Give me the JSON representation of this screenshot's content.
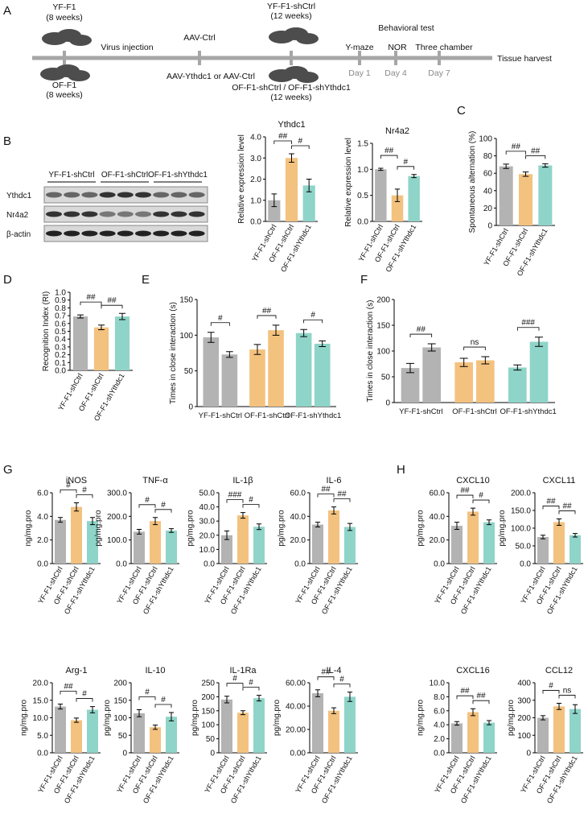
{
  "timeline": {
    "panel": "A",
    "start_top": [
      "YF-F1",
      "(8 weeks)"
    ],
    "start_bottom": [
      "OF-F1",
      "(8 weeks)"
    ],
    "injection": "Virus injection",
    "vector_top": "AAV-Ctrl",
    "vector_bottom": "AAV-Ythdc1 or AAV-Ctrl",
    "mid_top": [
      "YF-F1-shCtrl",
      "(12 weeks)"
    ],
    "mid_bottom": [
      "OF-F1-shCtrl / OF-F1-shYthdc1",
      "(12 weeks)"
    ],
    "behavior": "Behavioral test",
    "tests": [
      "Y-maze",
      "NOR",
      "Three chamber"
    ],
    "days": [
      "Day 1",
      "Day 4",
      "Day 7"
    ],
    "end": "Tissue harvest"
  },
  "blot": {
    "panel": "B",
    "lanes": [
      "YF-F1-shCtrl",
      "OF-F1-shCtrl",
      "OF-F1-shYthdc1"
    ],
    "rows": [
      "Ythdc1",
      "Nr4a2",
      "β-actin"
    ]
  },
  "chart_data": [
    {
      "type": "bar",
      "title": "Ythdc1",
      "ylabel": "Relative expression level",
      "categories": [
        "YF-F1-shCtrl",
        "OF-F1-shCtrl",
        "OF-F1-shYthdc1"
      ],
      "values": [
        1.0,
        3.0,
        1.7
      ],
      "errors": [
        0.3,
        0.2,
        0.3
      ],
      "colors": [
        "#b3b3b3",
        "#f3c27f",
        "#8fd4c8"
      ],
      "ylim": [
        0,
        4
      ],
      "yticks": [
        {
          "value": 0,
          "label": "0.0"
        },
        {
          "value": 1,
          "label": "1.0"
        },
        {
          "value": 2,
          "label": "2.0"
        },
        {
          "value": 3,
          "label": "3.0"
        },
        {
          "value": 4,
          "label": "4.0"
        }
      ],
      "annotations": [
        "##",
        "#"
      ]
    },
    {
      "type": "bar",
      "title": "Nr4a2",
      "ylabel": "Relative expression level",
      "categories": [
        "YF-F1-shCtrl",
        "OF-F1-shCtrl",
        "OF-F1-shYthdc1"
      ],
      "values": [
        1.0,
        0.5,
        0.87
      ],
      "errors": [
        0.02,
        0.12,
        0.03
      ],
      "colors": [
        "#b3b3b3",
        "#f3c27f",
        "#8fd4c8"
      ],
      "ylim": [
        0,
        1.5
      ],
      "yticks": [
        {
          "value": 0,
          "label": "0.0"
        },
        0.5,
        {
          "value": 1,
          "label": "1.0"
        },
        1.5
      ],
      "annotations": [
        "##",
        "#"
      ]
    },
    {
      "type": "bar",
      "panel": "C",
      "ylabel": "Spontaneous alternation (%)",
      "categories": [
        "YF-F1-shCtrl",
        "OF-F1-shCtrl",
        "OF-F1-shYthdc1"
      ],
      "values": [
        68,
        59,
        69
      ],
      "errors": [
        2.5,
        2.5,
        2
      ],
      "colors": [
        "#b3b3b3",
        "#f3c27f",
        "#8fd4c8"
      ],
      "ylim": [
        0,
        100
      ],
      "yticks": [
        0,
        20,
        40,
        60,
        80,
        100
      ],
      "annotations": [
        "##",
        "##"
      ]
    },
    {
      "type": "bar",
      "panel": "D",
      "ylabel": "Recognition Index (RI)",
      "categories": [
        "YF-F1-shCtrl",
        "OF-F1-shCtrl",
        "OF-F1-shYthdc1"
      ],
      "values": [
        0.69,
        0.55,
        0.69
      ],
      "errors": [
        0.02,
        0.03,
        0.04
      ],
      "colors": [
        "#b3b3b3",
        "#f3c27f",
        "#8fd4c8"
      ],
      "ylim": [
        0,
        1
      ],
      "yticks": [
        {
          "value": 0,
          "label": "0.0"
        },
        0.1,
        0.2,
        0.3,
        0.4,
        0.5,
        0.6,
        0.7,
        0.8,
        0.9,
        {
          "value": 1,
          "label": "1.0"
        }
      ],
      "annotations": [
        "##",
        "##"
      ]
    },
    {
      "type": "grouped_bar",
      "panel": "E",
      "ylabel": "Times in close interaction (s)",
      "categories": [
        "YF-F1-shCtrl",
        "OF-F1-shCtrl",
        "OF-F1-shYthdc1"
      ],
      "values": [
        [
          97,
          73
        ],
        [
          80,
          107
        ],
        [
          103,
          88
        ]
      ],
      "errors": [
        [
          7,
          4
        ],
        [
          7,
          7
        ],
        [
          5,
          4
        ]
      ],
      "colors": [
        "#b3b3b3",
        "#f3c27f",
        "#8fd4c8"
      ],
      "ylim": [
        0,
        150
      ],
      "yticks": [
        0,
        50,
        100,
        150
      ],
      "annotations": [
        "#",
        "##",
        "#"
      ]
    },
    {
      "type": "grouped_bar",
      "panel": "F",
      "ylabel": "Times in close interaction (s)",
      "categories": [
        "YF-F1-shCtrl",
        "OF-F1-shCtrl",
        "OF-F1-shYthdc1"
      ],
      "values": [
        [
          67,
          107
        ],
        [
          78,
          82
        ],
        [
          68,
          118
        ]
      ],
      "errors": [
        [
          9,
          7
        ],
        [
          8,
          7
        ],
        [
          5,
          9
        ]
      ],
      "colors": [
        "#b3b3b3",
        "#f3c27f",
        "#8fd4c8"
      ],
      "ylim": [
        0,
        200
      ],
      "yticks": [
        0,
        50,
        100,
        150,
        200
      ],
      "annotations": [
        "##",
        "ns",
        "###"
      ]
    },
    {
      "type": "bar",
      "panel": "G",
      "title": "iNOS",
      "ylabel": "ng/mg.pro",
      "categories": [
        "YF-F1-shCtrl",
        "OF-F1-shCtrl",
        "OF-F1-shYthdc1"
      ],
      "values": [
        3.7,
        4.8,
        3.6
      ],
      "errors": [
        0.2,
        0.35,
        0.3
      ],
      "colors": [
        "#b3b3b3",
        "#f3c27f",
        "#8fd4c8"
      ],
      "ylim": [
        0,
        6
      ],
      "yticks": [
        {
          "value": 0,
          "label": "0.0"
        },
        {
          "value": 2,
          "label": "2.0"
        },
        {
          "value": 4,
          "label": "4.0"
        },
        {
          "value": 6,
          "label": "6.0"
        }
      ],
      "annotations": [
        "#",
        "#"
      ]
    },
    {
      "type": "bar",
      "title": "TNF-α",
      "ylabel": "pg/mg.pro",
      "categories": [
        "YF-F1-shCtrl",
        "OF-F1-shCtrl",
        "OF-F1-shYthdc1"
      ],
      "values": [
        135,
        180,
        140
      ],
      "errors": [
        10,
        15,
        8
      ],
      "colors": [
        "#b3b3b3",
        "#f3c27f",
        "#8fd4c8"
      ],
      "ylim": [
        0,
        300
      ],
      "yticks": [
        {
          "value": 0,
          "label": "0.0"
        },
        {
          "value": 100,
          "label": "100.0"
        },
        {
          "value": 200,
          "label": "200.0"
        },
        {
          "value": 300,
          "label": "300.0"
        }
      ],
      "annotations": [
        "#",
        "#"
      ]
    },
    {
      "type": "bar",
      "title": "IL-1β",
      "ylabel": "pg/mg.pro",
      "categories": [
        "YF-F1-shCtrl",
        "OF-F1-shCtrl",
        "OF-F1-shYthdc1"
      ],
      "values": [
        20,
        34,
        26
      ],
      "errors": [
        3,
        2,
        2
      ],
      "colors": [
        "#b3b3b3",
        "#f3c27f",
        "#8fd4c8"
      ],
      "ylim": [
        0,
        50
      ],
      "yticks": [
        {
          "value": 0,
          "label": "0.0"
        },
        {
          "value": 10,
          "label": "10.0"
        },
        {
          "value": 20,
          "label": "20.0"
        },
        {
          "value": 30,
          "label": "30.0"
        },
        {
          "value": 40,
          "label": "40.0"
        },
        {
          "value": 50,
          "label": "50.0"
        }
      ],
      "annotations": [
        "###",
        "#"
      ]
    },
    {
      "type": "bar",
      "title": "IL-6",
      "ylabel": "pg/mg.pro",
      "categories": [
        "YF-F1-shCtrl",
        "OF-F1-shCtrl",
        "OF-F1-shYthdc1"
      ],
      "values": [
        33,
        45,
        31
      ],
      "errors": [
        2,
        3,
        3
      ],
      "colors": [
        "#b3b3b3",
        "#f3c27f",
        "#8fd4c8"
      ],
      "ylim": [
        0,
        60
      ],
      "yticks": [
        {
          "value": 0,
          "label": "0.0"
        },
        {
          "value": 20,
          "label": "20.0"
        },
        {
          "value": 40,
          "label": "40.0"
        },
        {
          "value": 60,
          "label": "60.0"
        }
      ],
      "annotations": [
        "##",
        "##"
      ]
    },
    {
      "type": "bar",
      "panel": "H",
      "title": "CXCL10",
      "ylabel": "pg/mg.pro",
      "categories": [
        "YF-F1-shCtrl",
        "OF-F1-shCtrl",
        "OF-F1-shYthdc1"
      ],
      "values": [
        32,
        44,
        35
      ],
      "errors": [
        3,
        3,
        2
      ],
      "colors": [
        "#b3b3b3",
        "#f3c27f",
        "#8fd4c8"
      ],
      "ylim": [
        0,
        60
      ],
      "yticks": [
        {
          "value": 0,
          "label": "0.0"
        },
        {
          "value": 20,
          "label": "20.0"
        },
        {
          "value": 40,
          "label": "40.0"
        },
        {
          "value": 60,
          "label": "60.0"
        }
      ],
      "annotations": [
        "##",
        "#"
      ]
    },
    {
      "type": "bar",
      "title": "CXCL11",
      "ylabel": "pg/mg.pro",
      "categories": [
        "YF-F1-shCtrl",
        "OF-F1-shCtrl",
        "OF-F1-shYthdc1"
      ],
      "values": [
        75,
        117,
        80
      ],
      "errors": [
        5,
        9,
        5
      ],
      "colors": [
        "#b3b3b3",
        "#f3c27f",
        "#8fd4c8"
      ],
      "ylim": [
        0,
        200
      ],
      "yticks": [
        {
          "value": 0,
          "label": "0.0"
        },
        {
          "value": 50,
          "label": "50.0"
        },
        {
          "value": 100,
          "label": "100.0"
        },
        {
          "value": 150,
          "label": "150.0"
        },
        {
          "value": 200,
          "label": "200.0"
        }
      ],
      "annotations": [
        "##",
        "##"
      ]
    },
    {
      "type": "bar",
      "title": "Arg-1",
      "ylabel": "ng/mg.pro",
      "categories": [
        "YF-F1-shCtrl",
        "OF-F1-shCtrl",
        "OF-F1-shYthdc1"
      ],
      "values": [
        13.2,
        9.3,
        12.3
      ],
      "errors": [
        0.7,
        0.6,
        0.9
      ],
      "colors": [
        "#b3b3b3",
        "#f3c27f",
        "#8fd4c8"
      ],
      "ylim": [
        0,
        20
      ],
      "yticks": [
        {
          "value": 0,
          "label": "0.0"
        },
        {
          "value": 5,
          "label": "5.0"
        },
        {
          "value": 10,
          "label": "10.0"
        },
        {
          "value": 15,
          "label": "15.0"
        },
        {
          "value": 20,
          "label": "20.0"
        }
      ],
      "annotations": [
        "##",
        "#"
      ]
    },
    {
      "type": "bar",
      "title": "IL-10",
      "ylabel": "pg/mg.pro",
      "categories": [
        "YF-F1-shCtrl",
        "OF-F1-shCtrl",
        "OF-F1-shYthdc1"
      ],
      "values": [
        113,
        73,
        103
      ],
      "errors": [
        10,
        6,
        12
      ],
      "colors": [
        "#b3b3b3",
        "#f3c27f",
        "#8fd4c8"
      ],
      "ylim": [
        0,
        200
      ],
      "yticks": [
        0,
        50,
        100,
        150,
        200
      ],
      "annotations": [
        "#",
        "#"
      ]
    },
    {
      "type": "bar",
      "title": "IL-1Ra",
      "ylabel": "pg/mg.pro",
      "categories": [
        "YF-F1-shCtrl",
        "OF-F1-shCtrl",
        "OF-F1-shYthdc1"
      ],
      "values": [
        190,
        143,
        195
      ],
      "errors": [
        12,
        7,
        10
      ],
      "colors": [
        "#b3b3b3",
        "#f3c27f",
        "#8fd4c8"
      ],
      "ylim": [
        0,
        250
      ],
      "yticks": [
        0,
        50,
        100,
        150,
        200,
        250
      ],
      "annotations": [
        "#",
        "#"
      ]
    },
    {
      "type": "bar",
      "title": "IL-4",
      "ylabel": "pg/mg.pro",
      "categories": [
        "YF-F1-shCtrl",
        "OF-F1-shCtrl",
        "OF-F1-shYthdc1"
      ],
      "values": [
        51,
        36,
        48
      ],
      "errors": [
        3,
        2.5,
        4
      ],
      "colors": [
        "#b3b3b3",
        "#f3c27f",
        "#8fd4c8"
      ],
      "ylim": [
        0,
        60
      ],
      "yticks": [
        {
          "value": 0,
          "label": "0.00"
        },
        {
          "value": 20,
          "label": "20.00"
        },
        {
          "value": 40,
          "label": "40.00"
        },
        {
          "value": 60,
          "label": "60.00"
        }
      ],
      "annotations": [
        "##",
        "#"
      ]
    },
    {
      "type": "bar",
      "title": "CXCL16",
      "ylabel": "ng/mg.pro",
      "categories": [
        "YF-F1-shCtrl",
        "OF-F1-shCtrl",
        "OF-F1-shYthdc1"
      ],
      "values": [
        4.2,
        5.8,
        4.3
      ],
      "errors": [
        0.25,
        0.5,
        0.3
      ],
      "colors": [
        "#b3b3b3",
        "#f3c27f",
        "#8fd4c8"
      ],
      "ylim": [
        0,
        10
      ],
      "yticks": [
        {
          "value": 0,
          "label": "0.0"
        },
        {
          "value": 2,
          "label": "2.0"
        },
        {
          "value": 4,
          "label": "4.0"
        },
        {
          "value": 6,
          "label": "6.0"
        },
        {
          "value": 8,
          "label": "8.0"
        },
        {
          "value": 10,
          "label": "10.0"
        }
      ],
      "annotations": [
        "##",
        "##"
      ]
    },
    {
      "type": "bar",
      "title": "CCL12",
      "ylabel": "pg/mg.pro",
      "categories": [
        "YF-F1-shCtrl",
        "OF-F1-shCtrl",
        "OF-F1-shYthdc1"
      ],
      "values": [
        200,
        265,
        250
      ],
      "errors": [
        12,
        18,
        25
      ],
      "colors": [
        "#b3b3b3",
        "#f3c27f",
        "#8fd4c8"
      ],
      "ylim": [
        0,
        400
      ],
      "yticks": [
        0,
        100,
        200,
        300,
        400
      ],
      "annotations": [
        "#",
        "ns"
      ]
    }
  ]
}
